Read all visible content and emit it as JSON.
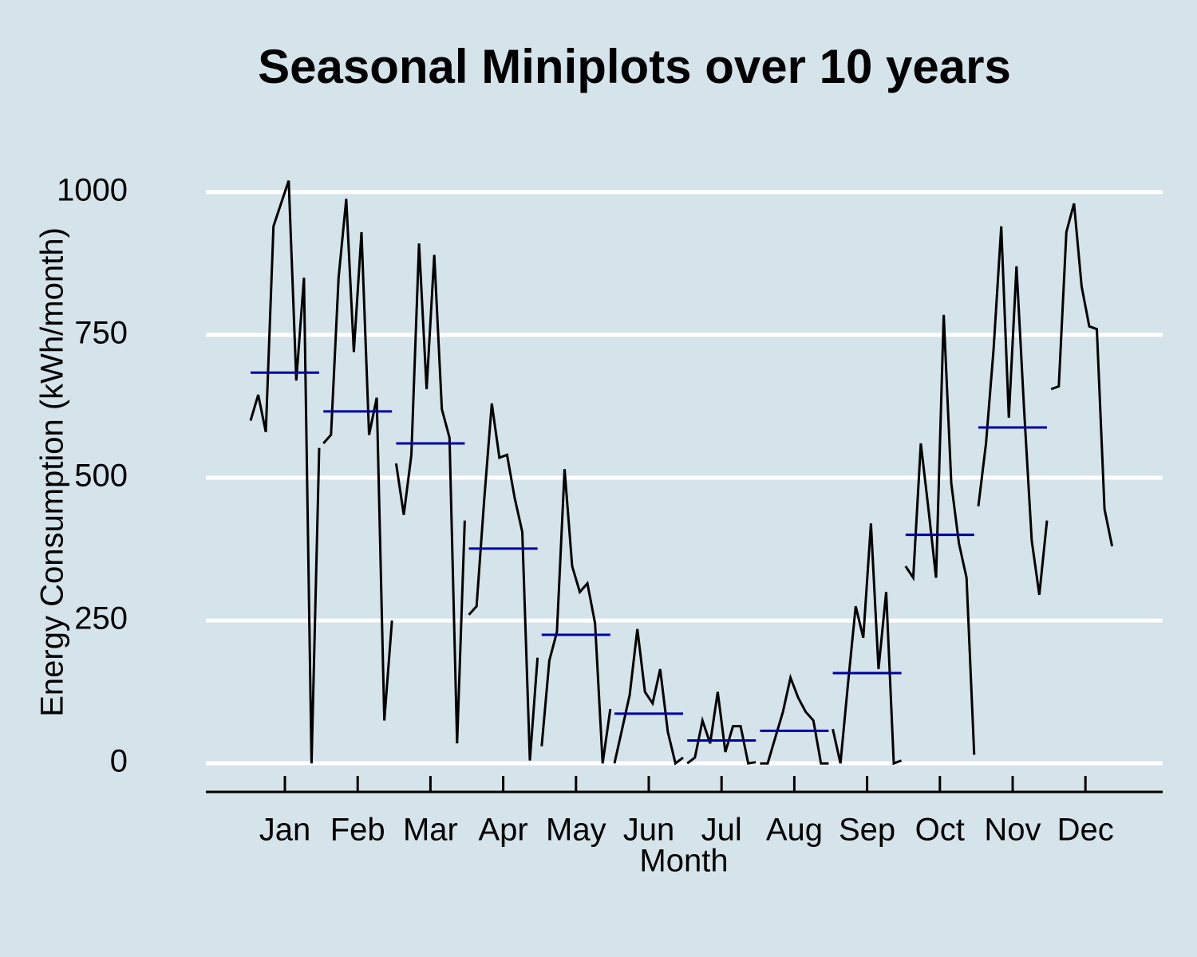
{
  "chart_data": {
    "type": "monthplot",
    "title": "Seasonal Miniplots over 10 years",
    "xlabel": "Month",
    "ylabel": "Energy Consumption (kWh/month)",
    "categories": [
      "Jan",
      "Feb",
      "Mar",
      "Apr",
      "May",
      "Jun",
      "Jul",
      "Aug",
      "Sep",
      "Oct",
      "Nov",
      "Dec"
    ],
    "values": [
      [
        600,
        645,
        580,
        940,
        980,
        1020,
        670,
        850,
        0,
        552
      ],
      [
        560,
        575,
        850,
        988,
        720,
        930,
        575,
        640,
        75,
        250
      ],
      [
        525,
        435,
        540,
        910,
        655,
        890,
        620,
        570,
        35,
        425
      ],
      [
        260,
        275,
        460,
        630,
        535,
        540,
        465,
        405,
        5,
        185
      ],
      [
        30,
        180,
        230,
        515,
        345,
        300,
        315,
        245,
        0,
        95
      ],
      [
        0,
        60,
        120,
        235,
        125,
        105,
        165,
        55,
        0,
        10
      ],
      [
        0,
        10,
        75,
        35,
        125,
        20,
        65,
        65,
        0,
        2
      ],
      [
        0,
        0,
        45,
        90,
        150,
        115,
        90,
        75,
        0,
        0
      ],
      [
        60,
        0,
        140,
        275,
        220,
        420,
        165,
        300,
        0,
        5
      ],
      [
        345,
        325,
        560,
        445,
        325,
        785,
        490,
        385,
        325,
        15
      ],
      [
        450,
        560,
        725,
        940,
        605,
        870,
        620,
        390,
        295,
        425
      ],
      [
        655,
        660,
        930,
        980,
        835,
        765,
        760,
        445,
        380,
        null
      ]
    ],
    "means": [
      684,
      616,
      560,
      376,
      225,
      87,
      40,
      57,
      158,
      400,
      588,
      null
    ],
    "color": "#000000",
    "mean_color": "#0000a0",
    "ylim": [
      -50,
      1050
    ],
    "yticks": [
      0,
      250,
      500,
      750,
      1000
    ],
    "grid": true
  }
}
